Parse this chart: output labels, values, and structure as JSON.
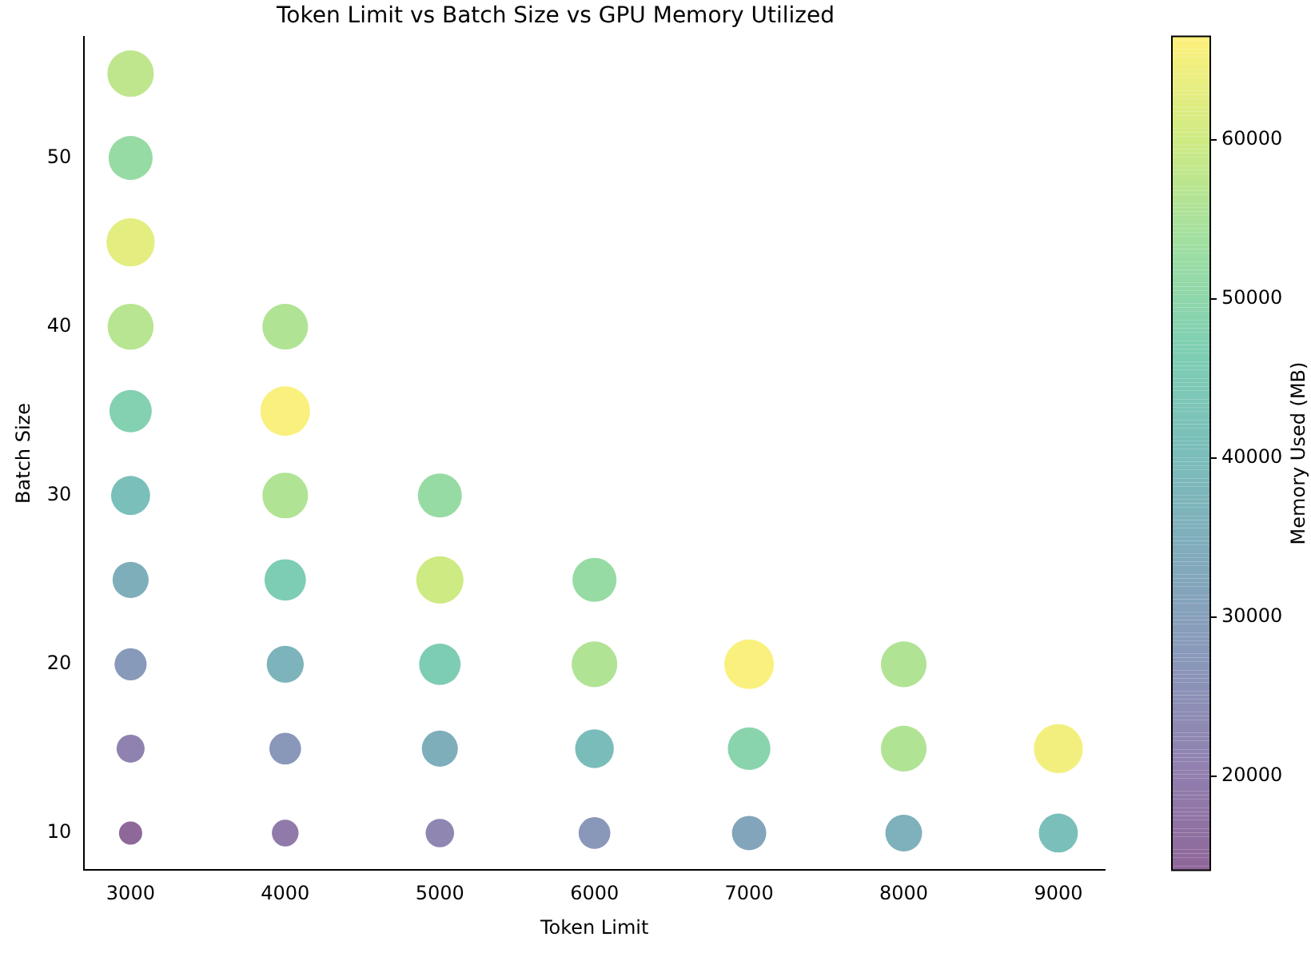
{
  "chart_data": {
    "type": "bubble",
    "title": "Token Limit vs Batch Size vs GPU Memory Utilized",
    "xlabel": "Token Limit",
    "ylabel": "Batch Size",
    "clabel": "Memory Used (MB)",
    "x": [
      3000,
      3000,
      3000,
      3000,
      3000,
      3000,
      3000,
      3000,
      3000,
      3000,
      4000,
      4000,
      4000,
      4000,
      4000,
      4000,
      4000,
      5000,
      5000,
      5000,
      5000,
      5000,
      6000,
      6000,
      6000,
      6000,
      7000,
      7000,
      7000,
      8000,
      8000,
      8000,
      9000,
      9000
    ],
    "values": [
      10,
      15,
      20,
      25,
      30,
      35,
      40,
      45,
      50,
      55,
      10,
      15,
      20,
      25,
      30,
      35,
      40,
      10,
      15,
      20,
      25,
      30,
      10,
      15,
      20,
      25,
      10,
      15,
      20,
      10,
      15,
      20,
      10,
      15
    ],
    "cvalues": [
      14500,
      21000,
      28000,
      35000,
      41000,
      48000,
      57000,
      63000,
      52000,
      58000,
      19000,
      27000,
      37000,
      46000,
      56000,
      66000,
      56000,
      22000,
      35000,
      46000,
      60000,
      52000,
      27000,
      40000,
      56000,
      52000,
      32000,
      49000,
      66000,
      36000,
      56000,
      56000,
      41000,
      65000
    ],
    "sizes": [
      0.22,
      0.32,
      0.42,
      0.53,
      0.62,
      0.73,
      0.86,
      0.95,
      0.79,
      0.88,
      0.29,
      0.41,
      0.56,
      0.7,
      0.85,
      1,
      0.85,
      0.33,
      0.53,
      0.7,
      0.91,
      0.79,
      0.41,
      0.61,
      0.85,
      0.79,
      0.48,
      0.74,
      1,
      0.55,
      0.85,
      0.85,
      0.62,
      0.98
    ],
    "xlim": [
      2700,
      9300
    ],
    "xticks": [
      3000,
      4000,
      5000,
      6000,
      7000,
      8000,
      9000
    ],
    "ylim": [
      7.8,
      57.2
    ],
    "yticks": [
      10,
      20,
      30,
      40,
      50
    ],
    "clim": [
      14100,
      66500
    ],
    "cticks": [
      20000,
      30000,
      40000,
      50000,
      60000
    ]
  }
}
